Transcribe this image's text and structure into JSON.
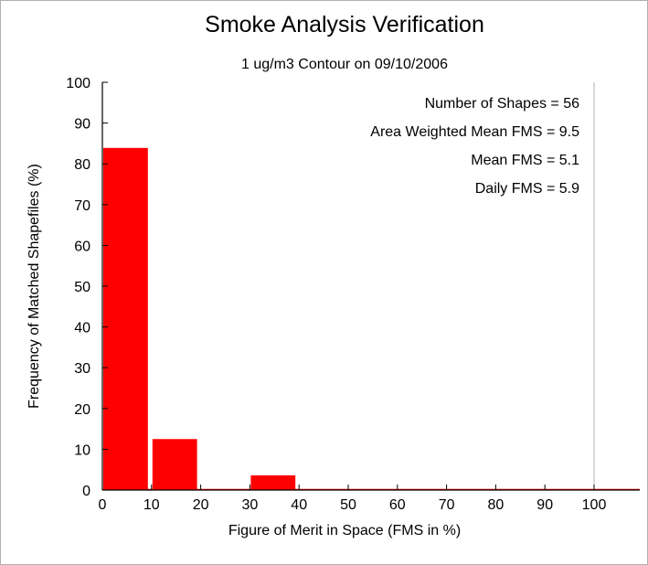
{
  "chart_data": {
    "type": "bar",
    "title": "Smoke Analysis Verification",
    "subtitle": "1 ug/m3 Contour on 09/10/2006",
    "xlabel": "Figure of Merit in Space (FMS in %)",
    "ylabel": "Frequency of Matched Shapefiles (%)",
    "xlim": [
      0,
      100
    ],
    "ylim": [
      0,
      100
    ],
    "x_ticks": [
      "0",
      "10",
      "20",
      "30",
      "40",
      "50",
      "60",
      "70",
      "80",
      "90",
      "100"
    ],
    "y_ticks": [
      "0",
      "10",
      "20",
      "30",
      "40",
      "50",
      "60",
      "70",
      "80",
      "90",
      "100"
    ],
    "bins": [
      {
        "start": 0,
        "end": 10,
        "value": 83.9
      },
      {
        "start": 10,
        "end": 20,
        "value": 12.5
      },
      {
        "start": 20,
        "end": 30,
        "value": 0
      },
      {
        "start": 30,
        "end": 40,
        "value": 3.6
      },
      {
        "start": 40,
        "end": 50,
        "value": 0
      },
      {
        "start": 50,
        "end": 60,
        "value": 0
      },
      {
        "start": 60,
        "end": 70,
        "value": 0
      },
      {
        "start": 70,
        "end": 80,
        "value": 0
      },
      {
        "start": 80,
        "end": 90,
        "value": 0
      },
      {
        "start": 90,
        "end": 100,
        "value": 0
      }
    ],
    "bar_color": "#ff0000",
    "grid": false,
    "annotations": [
      "Number of Shapes = 56",
      "Area Weighted Mean FMS = 9.5",
      "Mean FMS = 5.1",
      "Daily FMS = 5.9"
    ]
  }
}
